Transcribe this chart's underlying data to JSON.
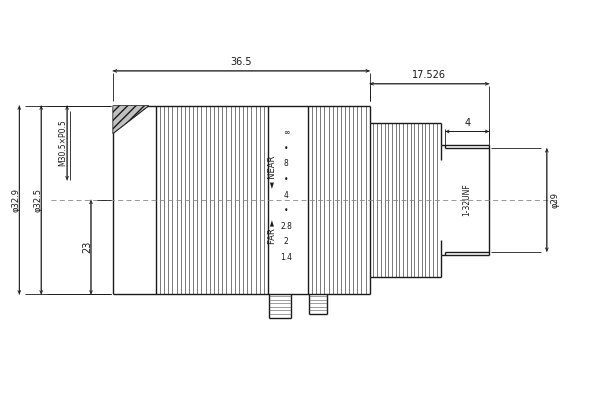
{
  "bg_color": "#ffffff",
  "line_color": "#1a1a1a",
  "dim_color": "#1a1a1a",
  "fig_width": 6.0,
  "fig_height": 4.0,
  "dpi": 100,
  "dim_36_5": "36.5",
  "dim_17_526": "17.526",
  "dim_4": "4",
  "dim_phi29": "φ29",
  "dim_phi325": "φ32.5",
  "dim_phi329": "φ32.9",
  "dim_23": "23",
  "dim_m30": "M30.5×P0.5",
  "dim_1_32unf": "1-32UNF",
  "text_near": "◄ NEAR",
  "text_far": "FAR ►",
  "scale_labels": [
    "∞",
    "•",
    "8",
    "•",
    "4",
    "•",
    "2.8",
    "2",
    "1.4"
  ]
}
